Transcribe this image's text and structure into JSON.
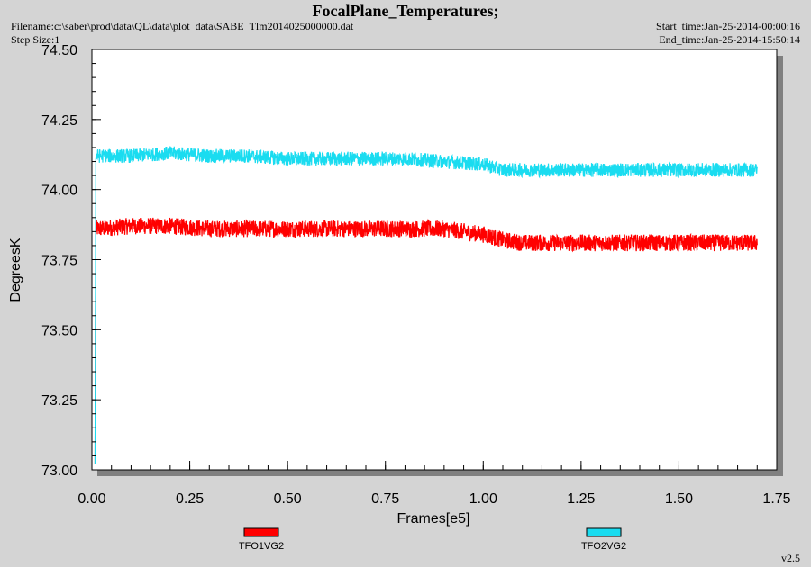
{
  "header": {
    "title": "FocalPlane_Temperatures;",
    "filename": "Filename:c:\\saber\\prod\\data\\QL\\data\\plot_data\\SABE_Tlm2014025000000.dat",
    "step_size": "Step Size:1",
    "start_time": "Start_time:Jan-25-2014-00:00:16",
    "end_time": "End_time:Jan-25-2014-15:50:14"
  },
  "footer": {
    "version": "v2.5"
  },
  "colors": {
    "background": "#d4d4d4",
    "plot_area": "#ffffff",
    "shadow": "#808080"
  },
  "chart_data": {
    "type": "line",
    "xlabel": "Frames[e5]",
    "ylabel": "DegreesK",
    "xlim": [
      0.0,
      1.75
    ],
    "ylim": [
      73.0,
      74.5
    ],
    "xticks": [
      "0.00",
      "0.25",
      "0.50",
      "0.75",
      "1.00",
      "1.25",
      "1.50",
      "1.75"
    ],
    "yticks": [
      "73.00",
      "73.25",
      "73.50",
      "73.75",
      "74.00",
      "74.25",
      "74.50"
    ],
    "grid": false,
    "legend_position": "bottom",
    "series": [
      {
        "name": "TFO1VG2",
        "color": "#ff0000",
        "noise": 0.03,
        "x": [
          0.01,
          0.1,
          0.2,
          0.3,
          0.4,
          0.5,
          0.6,
          0.7,
          0.8,
          0.9,
          1.0,
          1.05,
          1.1,
          1.2,
          1.3,
          1.4,
          1.5,
          1.6,
          1.7
        ],
        "y": [
          73.86,
          73.87,
          73.87,
          73.86,
          73.86,
          73.86,
          73.86,
          73.86,
          73.86,
          73.86,
          73.84,
          73.82,
          73.81,
          73.81,
          73.81,
          73.81,
          73.81,
          73.81,
          73.81
        ]
      },
      {
        "name": "TFO2VG2",
        "color": "#1adcf0",
        "noise": 0.025,
        "x": [
          0.01,
          0.1,
          0.2,
          0.3,
          0.4,
          0.5,
          0.6,
          0.7,
          0.8,
          0.9,
          1.0,
          1.05,
          1.1,
          1.2,
          1.3,
          1.4,
          1.5,
          1.6,
          1.7
        ],
        "y": [
          74.12,
          74.12,
          74.13,
          74.12,
          74.12,
          74.11,
          74.11,
          74.11,
          74.11,
          74.1,
          74.09,
          74.07,
          74.07,
          74.07,
          74.07,
          74.07,
          74.07,
          74.07,
          74.07
        ]
      }
    ]
  }
}
